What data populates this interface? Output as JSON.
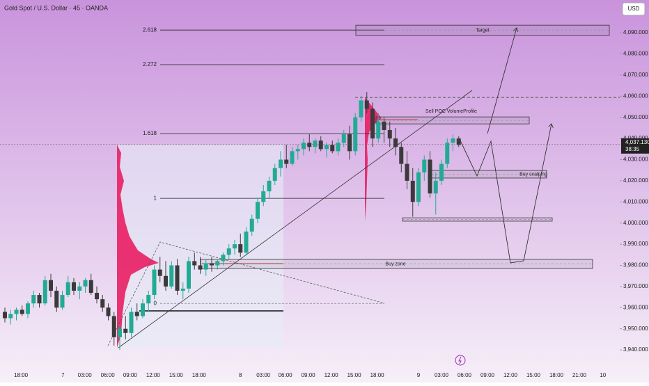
{
  "chart_data": {
    "type": "candlestick",
    "title": "Gold Spot / U.S. Dollar · 45 · OANDA",
    "currency": "USD",
    "colors": {
      "up": "#22ab94",
      "down": "#3a3a3a"
    },
    "x": [
      0,
      1,
      2,
      3,
      4,
      5,
      6,
      7,
      8,
      9,
      10,
      11,
      12,
      13,
      14,
      15,
      16,
      17,
      18,
      19,
      20,
      21,
      22,
      23,
      24,
      25,
      26,
      27,
      28,
      29,
      30,
      31,
      32,
      33,
      34,
      35,
      36,
      37,
      38,
      39,
      40,
      41,
      42,
      43,
      44,
      45,
      46,
      47,
      48,
      49,
      50,
      51,
      52,
      53,
      54,
      55,
      56,
      57,
      58,
      59,
      60,
      61,
      62,
      63,
      64,
      65,
      66,
      67,
      68,
      69,
      70,
      71,
      72,
      73,
      74,
      75,
      76,
      77,
      78,
      79
    ],
    "open": [
      3958,
      3955,
      3957,
      3959,
      3957,
      3962,
      3966,
      3962,
      3973,
      3968,
      3960,
      3966,
      3972,
      3968,
      3970,
      3973,
      3967,
      3964,
      3960,
      3956,
      3946,
      3950,
      3948,
      3958,
      3956,
      3962,
      3966,
      3978,
      3975,
      3970,
      3980,
      3968,
      3969,
      3982,
      3980,
      3978,
      3981,
      3980,
      3982,
      3985,
      3988,
      3990,
      3986,
      3996,
      4002,
      4010,
      4015,
      4020,
      4026,
      4030,
      4028,
      4034,
      4035,
      4038,
      4036,
      4039,
      4035,
      4037,
      4034,
      4038,
      4042,
      4034,
      4050,
      4058,
      4054,
      4040,
      4048,
      4044,
      4040,
      4036,
      4028,
      4020,
      4010,
      4024,
      4030,
      4014,
      4020,
      4028,
      4038,
      4040
    ],
    "high": [
      3960,
      3959,
      3960,
      3961,
      3963,
      3968,
      3967,
      3975,
      3976,
      3970,
      3968,
      3975,
      3974,
      3972,
      3974,
      3976,
      3970,
      3966,
      3962,
      3958,
      3952,
      3956,
      3960,
      3962,
      3964,
      3968,
      3980,
      3984,
      3982,
      3982,
      3983,
      3972,
      3984,
      3986,
      3984,
      3983,
      3984,
      3983,
      3986,
      3990,
      3992,
      3995,
      3998,
      4004,
      4012,
      4018,
      4022,
      4028,
      4034,
      4037,
      4036,
      4037,
      4040,
      4042,
      4040,
      4041,
      4038,
      4039,
      4040,
      4044,
      4046,
      4052,
      4060,
      4062,
      4057,
      4052,
      4050,
      4048,
      4045,
      4038,
      4034,
      4026,
      4026,
      4032,
      4034,
      4024,
      4030,
      4040,
      4042,
      4041
    ],
    "low": [
      3953,
      3952,
      3954,
      3956,
      3955,
      3960,
      3960,
      3961,
      3965,
      3958,
      3959,
      3965,
      3966,
      3964,
      3967,
      3966,
      3962,
      3958,
      3954,
      3942,
      3940,
      3945,
      3946,
      3954,
      3955,
      3958,
      3964,
      3972,
      3968,
      3969,
      3966,
      3964,
      3967,
      3978,
      3976,
      3975,
      3977,
      3978,
      3980,
      3983,
      3985,
      3984,
      3985,
      3994,
      4000,
      4008,
      4012,
      4018,
      4022,
      4026,
      4027,
      4030,
      4032,
      4034,
      4033,
      4034,
      4031,
      4033,
      4032,
      4036,
      4030,
      4032,
      4048,
      4052,
      4036,
      4038,
      4038,
      4036,
      4032,
      4024,
      4016,
      4003,
      4008,
      4020,
      4012,
      4004,
      4018,
      4026,
      4034,
      4036
    ],
    "close": [
      3955,
      3957,
      3959,
      3957,
      3962,
      3966,
      3962,
      3973,
      3968,
      3960,
      3966,
      3972,
      3968,
      3970,
      3973,
      3967,
      3964,
      3960,
      3956,
      3946,
      3950,
      3948,
      3958,
      3956,
      3962,
      3966,
      3978,
      3975,
      3970,
      3980,
      3968,
      3969,
      3982,
      3980,
      3978,
      3981,
      3980,
      3982,
      3985,
      3988,
      3990,
      3986,
      3996,
      4002,
      4010,
      4015,
      4020,
      4026,
      4030,
      4028,
      4034,
      4035,
      4038,
      4036,
      4039,
      4035,
      4037,
      4034,
      4038,
      4042,
      4034,
      4050,
      4058,
      4054,
      4040,
      4048,
      4044,
      4040,
      4036,
      4028,
      4020,
      4010,
      4024,
      4030,
      4014,
      4020,
      4028,
      4038,
      4040,
      4037
    ],
    "xlim": [
      -0.85,
      107.03
    ],
    "xticks": [
      {
        "value": 2.8,
        "label": "18:00"
      },
      {
        "value": 10.1,
        "label": "7"
      },
      {
        "value": 13.9,
        "label": "03:00"
      },
      {
        "value": 17.9,
        "label": "06:00"
      },
      {
        "value": 21.8,
        "label": "09:00"
      },
      {
        "value": 25.8,
        "label": "12:00"
      },
      {
        "value": 29.8,
        "label": "15:00"
      },
      {
        "value": 33.8,
        "label": "18:00"
      },
      {
        "value": 41,
        "label": "8"
      },
      {
        "value": 45,
        "label": "03:00"
      },
      {
        "value": 48.8,
        "label": "06:00"
      },
      {
        "value": 52.8,
        "label": "09:00"
      },
      {
        "value": 56.8,
        "label": "12:00"
      },
      {
        "value": 60.8,
        "label": "15:00"
      },
      {
        "value": 64.8,
        "label": "18:00"
      },
      {
        "value": 72,
        "label": "9"
      },
      {
        "value": 76,
        "label": "03:00"
      },
      {
        "value": 80,
        "label": "06:00"
      },
      {
        "value": 84,
        "label": "09:00"
      },
      {
        "value": 88,
        "label": "12:00"
      },
      {
        "value": 92,
        "label": "15:00"
      },
      {
        "value": 96,
        "label": "18:00"
      },
      {
        "value": 100,
        "label": "21:00"
      },
      {
        "value": 104.1,
        "label": "10"
      }
    ],
    "ylim": [
      3932.8,
      4105.5
    ],
    "yticks": [
      {
        "value": 3940,
        "label": "3,940.000"
      },
      {
        "value": 3950,
        "label": "3,950.000"
      },
      {
        "value": 3960,
        "label": "3,960.000"
      },
      {
        "value": 3970,
        "label": "3,970.000"
      },
      {
        "value": 3980,
        "label": "3,980.000"
      },
      {
        "value": 3990,
        "label": "3,990.000"
      },
      {
        "value": 4000,
        "label": "4,000.000"
      },
      {
        "value": 4010,
        "label": "4,010.000"
      },
      {
        "value": 4020,
        "label": "4,020.000"
      },
      {
        "value": 4030,
        "label": "4,030.000"
      },
      {
        "value": 4040,
        "label": "4,040.000"
      },
      {
        "value": 4050,
        "label": "4,050.000"
      },
      {
        "value": 4060,
        "label": "4,060.000"
      },
      {
        "value": 4070,
        "label": "4,070.000"
      },
      {
        "value": 4080,
        "label": "4,080.000"
      },
      {
        "value": 4090,
        "label": "4,090.000"
      }
    ],
    "last_price": {
      "value": 4037.13,
      "label": "4,037.130"
    },
    "countdown": "38:35",
    "resistance": 4059.4,
    "fib_levels": [
      {
        "label": "2.618",
        "price": 4091.3
      },
      {
        "label": "2.272",
        "price": 4074.9
      },
      {
        "label": "1.618",
        "price": 4042.3
      },
      {
        "label": "1",
        "price": 4011.7
      },
      {
        "label": "0",
        "price": 3962
      }
    ],
    "zones": [
      {
        "label": "Target",
        "top": 4093.6,
        "bottom": 4088.7
      },
      {
        "label": "Sell POC VolumeProfile",
        "top": 4050.2,
        "bottom": 4046.9
      },
      {
        "label": "Buy scalping",
        "top": 4024.9,
        "bottom": 4021.3
      },
      {
        "top": 4002.5,
        "bottom": 4000.9
      },
      {
        "label": "Buy zone",
        "top": 3982.8,
        "bottom": 3978.5
      }
    ]
  }
}
